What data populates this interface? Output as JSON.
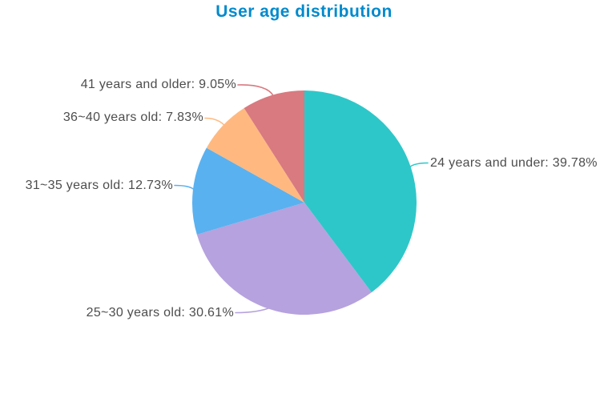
{
  "title": {
    "text": "User age distribution",
    "color": "#008acd"
  },
  "chart_data": {
    "type": "pie",
    "title": "User age distribution",
    "direction": "clockwise",
    "start_angle_deg": 0,
    "background": "#ffffff",
    "label_color": "#4d4d4d",
    "legend": "none",
    "slices": [
      {
        "name": "24 years and under",
        "value": 39.78,
        "label": "24 years and under: 39.78%",
        "color": "#2ec7c9"
      },
      {
        "name": "25~30 years old",
        "value": 30.61,
        "label": "25~30 years old: 30.61%",
        "color": "#b6a2de"
      },
      {
        "name": "31~35 years old",
        "value": 12.73,
        "label": "31~35 years old: 12.73%",
        "color": "#5ab1ef"
      },
      {
        "name": "36~40 years old",
        "value": 7.83,
        "label": "36~40 years old: 7.83%",
        "color": "#ffb980"
      },
      {
        "name": "41 years and older",
        "value": 9.05,
        "label": "41 years and older: 9.05%",
        "color": "#d87a80"
      }
    ]
  }
}
